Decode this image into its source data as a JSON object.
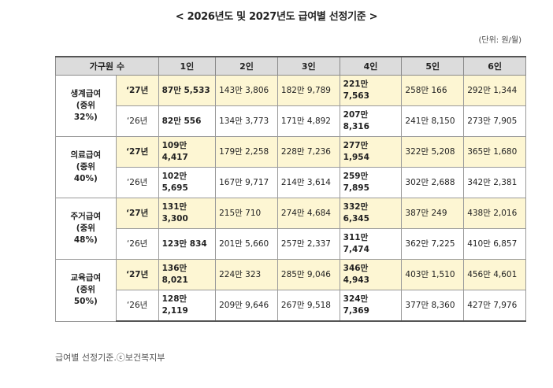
{
  "title": "< 2026년도 및 2027년도 급여별 선정기준 >",
  "unit": "(단위: 원/월)",
  "headers": [
    "가구원 수",
    "1인",
    "2인",
    "3인",
    "4인",
    "5인",
    "6인"
  ],
  "groups": [
    {
      "label": "생계급여\n(중위\n32%)",
      "rows": [
        {
          "year": "‘27년",
          "values": [
            "87만 5,533",
            "143만 3,806",
            "182만 9,789",
            "221만\n7,563",
            "258만 166",
            "292만 1,344"
          ]
        },
        {
          "year": "‘26년",
          "values": [
            "82만 556",
            "134만 3,773",
            "171만 4,892",
            "207만\n8,316",
            "241만 8,150",
            "273만 7,905"
          ]
        }
      ]
    },
    {
      "label": "의료급여\n(중위\n40%)",
      "rows": [
        {
          "year": "‘27년",
          "values": [
            "109만\n4,417",
            "179만 2,258",
            "228만 7,236",
            "277만\n1,954",
            "322만 5,208",
            "365만 1,680"
          ]
        },
        {
          "year": "‘26년",
          "values": [
            "102만\n5,695",
            "167만 9,717",
            "214만 3,614",
            "259만\n7,895",
            "302만 2,688",
            "342만 2,381"
          ]
        }
      ]
    },
    {
      "label": "주거급여\n(중위\n48%)",
      "rows": [
        {
          "year": "‘27년",
          "values": [
            "131만\n3,300",
            "215만 710",
            "274만 4,684",
            "332만\n6,345",
            "387만 249",
            "438만 2,016"
          ]
        },
        {
          "year": "‘26년",
          "values": [
            "123만 834",
            "201만 5,660",
            "257만 2,337",
            "311만\n7,474",
            "362만 7,225",
            "410만 6,857"
          ]
        }
      ]
    },
    {
      "label": "교육급여\n(중위\n50%)",
      "rows": [
        {
          "year": "‘27년",
          "values": [
            "136만\n8,021",
            "224만 323",
            "285만 9,046",
            "346만\n4,943",
            "403만 1,510",
            "456만 4,601"
          ]
        },
        {
          "year": "‘26년",
          "values": [
            "128만\n2,119",
            "209만 9,646",
            "267만 9,518",
            "324만\n7,369",
            "377만 8,360",
            "427만 7,976"
          ]
        }
      ]
    }
  ],
  "source": "급여별 선정기준.ⓒ보건복지부"
}
